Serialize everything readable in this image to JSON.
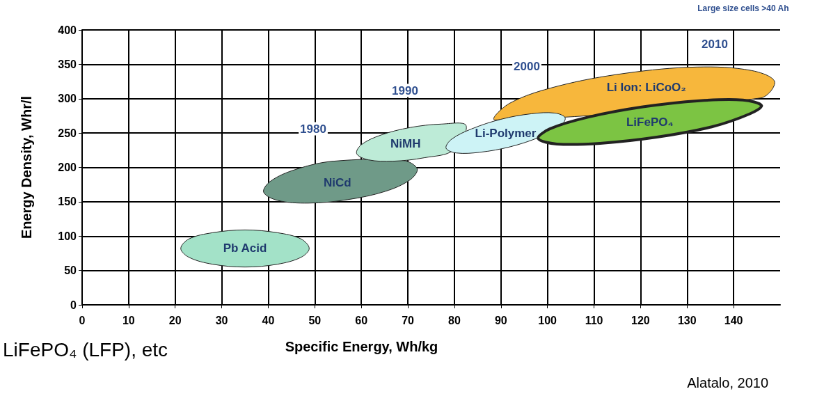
{
  "chart_data": {
    "type": "area",
    "xlabel": "Specific Energy, Wh/kg",
    "ylabel": "Energy Density, Whr/l",
    "xlim": [
      0,
      150
    ],
    "xticks": [
      0,
      10,
      20,
      30,
      40,
      50,
      60,
      70,
      80,
      90,
      100,
      110,
      120,
      130,
      140
    ],
    "ylim": [
      0,
      400
    ],
    "yticks": [
      0,
      50,
      100,
      150,
      200,
      250,
      300,
      350,
      400
    ],
    "grid": true,
    "legend": false,
    "series": [
      {
        "name": "Pb Acid",
        "color": "#a3e2c8",
        "x": [
          48.8,
          47,
          41.9,
          35,
          28.1,
          23,
          21.2,
          23,
          28.1,
          35,
          41.9,
          47
        ],
        "values": [
          82,
          96,
          105,
          109,
          105,
          96,
          82,
          69,
          59,
          55,
          59,
          69
        ]
      },
      {
        "name": "NiCd",
        "color": "#6f9a88",
        "x": [
          72,
          69,
          null,
          54,
          45.9,
          40.5,
          39,
          42,
          48.6,
          57,
          65.1,
          70.5
        ],
        "values": [
          198,
          210,
          null,
          209,
          197,
          180,
          164,
          152,
          148,
          153,
          165,
          182
        ]
      },
      {
        "name": "NiMH",
        "color": "#bdebd7",
        "x": [
          null,
          82.5,
          77.2,
          70.5,
          64.2,
          60,
          59,
          61.5,
          66.8,
          73.5,
          79.8,
          null
        ],
        "values": [
          null,
          261,
          263,
          258,
          247,
          233,
          220,
          211,
          209,
          214,
          225,
          null
        ]
      },
      {
        "name": "Li Ion: LiCoO₂",
        "color": "#f7b73c",
        "x": [
          148.8,
          143.8,
          132.1,
          116.8,
          102.1,
          91.8,
          88.8,
          null,
          null,
          null,
          null,
          145.8
        ],
        "values": [
          325,
          341,
          346,
          337,
          318,
          293,
          269,
          null,
          null,
          null,
          null,
          301
        ]
      },
      {
        "name": "Li-Polymer",
        "color": "#cdf3f6",
        "x": [
          103.8,
          101.6,
          96.5,
          90,
          83.7,
          79.4,
          78.2,
          80.4,
          85.5,
          92,
          98.3,
          102.6
        ],
        "values": [
          272,
          279,
          278,
          270,
          256,
          241,
          228,
          221,
          222,
          230,
          244,
          259
        ]
      },
      {
        "name": "LiFePO₄",
        "color": "#7cc443",
        "x": [
          146,
          142,
          132.7,
          120.5,
          108.7,
          100.5,
          98,
          102,
          111.3,
          123.5,
          135.3,
          143.5
        ],
        "values": [
          290,
          298,
          297,
          288,
          273,
          256,
          242,
          234,
          235,
          244,
          259,
          278
        ]
      }
    ],
    "annotations": [
      "Large size cells >40 Ah",
      "LiFePO₄ (LFP), etc",
      "Alatalo, 2010",
      "1980",
      "1990",
      "2000",
      "2010"
    ]
  }
}
